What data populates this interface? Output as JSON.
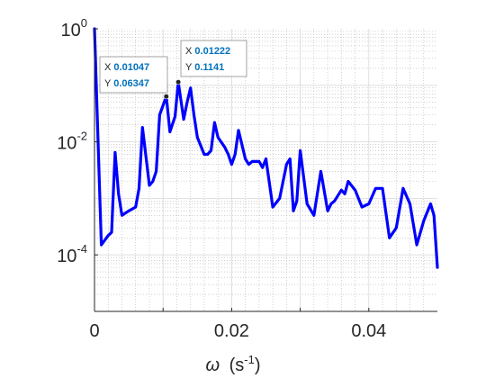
{
  "chart_data": {
    "type": "line",
    "xlabel_symbol": "ω",
    "xlabel_unit_base": "(s",
    "xlabel_unit_exp": "-1",
    "xlabel_unit_close": ")",
    "ylabel": "",
    "xlim": [
      0,
      0.05
    ],
    "ylim": [
      1e-05,
      1
    ],
    "yscale": "log",
    "grid": true,
    "minor_grid": true,
    "line_color": "#0000ff",
    "x_ticks": [
      0,
      0.02,
      0.04
    ],
    "x_tick_labels": [
      "0",
      "0.02",
      "0.04"
    ],
    "y_ticks": [
      0.0001,
      0.01,
      1
    ],
    "y_tick_labels": [
      {
        "base": "10",
        "exp": "-4"
      },
      {
        "base": "10",
        "exp": "-2"
      },
      {
        "base": "10",
        "exp": "0"
      }
    ],
    "series": [
      {
        "x": [
          0,
          0.001,
          0.002,
          0.0025,
          0.003,
          0.0035,
          0.004,
          0.005,
          0.006,
          0.0065,
          0.007,
          0.008,
          0.0085,
          0.009,
          0.0095,
          0.01047,
          0.011,
          0.01175,
          0.01222,
          0.013,
          0.0135,
          0.014,
          0.0145,
          0.015,
          0.016,
          0.0165,
          0.017,
          0.0175,
          0.018,
          0.019,
          0.0195,
          0.02,
          0.0205,
          0.021,
          0.022,
          0.0225,
          0.023,
          0.024,
          0.0245,
          0.025,
          0.026,
          0.027,
          0.028,
          0.0285,
          0.029,
          0.0295,
          0.03,
          0.031,
          0.032,
          0.033,
          0.034,
          0.0345,
          0.035,
          0.036,
          0.0365,
          0.037,
          0.038,
          0.039,
          0.04,
          0.041,
          0.042,
          0.043,
          0.044,
          0.045,
          0.046,
          0.047,
          0.048,
          0.049,
          0.0495,
          0.05
        ],
        "y": [
          1,
          0.00015,
          0.00022,
          0.00025,
          0.0065,
          0.0012,
          0.0005,
          0.0006,
          0.0007,
          0.0015,
          0.018,
          0.0017,
          0.002,
          0.003,
          0.03,
          0.06347,
          0.015,
          0.028,
          0.1141,
          0.025,
          0.05,
          0.09,
          0.03,
          0.012,
          0.006,
          0.006,
          0.007,
          0.022,
          0.012,
          0.008,
          0.006,
          0.004,
          0.006,
          0.016,
          0.005,
          0.004,
          0.0045,
          0.0045,
          0.0035,
          0.005,
          0.0007,
          0.001,
          0.004,
          0.005,
          0.0006,
          0.0009,
          0.007,
          0.0008,
          0.0005,
          0.003,
          0.0006,
          0.0008,
          0.0009,
          0.0014,
          0.0012,
          0.002,
          0.0014,
          0.0007,
          0.0008,
          0.0015,
          0.0015,
          0.0002,
          0.0003,
          0.0015,
          0.0008,
          0.00015,
          0.0004,
          0.0008,
          0.0005,
          6e-05
        ]
      }
    ],
    "datatips": [
      {
        "x_label": "X",
        "x_value": "0.01047",
        "y_label": "Y",
        "y_value": "0.06347",
        "x": 0.01047,
        "y": 0.06347
      },
      {
        "x_label": "X",
        "x_value": "0.01222",
        "y_label": "Y",
        "y_value": "0.1141",
        "x": 0.01222,
        "y": 0.1141
      }
    ]
  }
}
